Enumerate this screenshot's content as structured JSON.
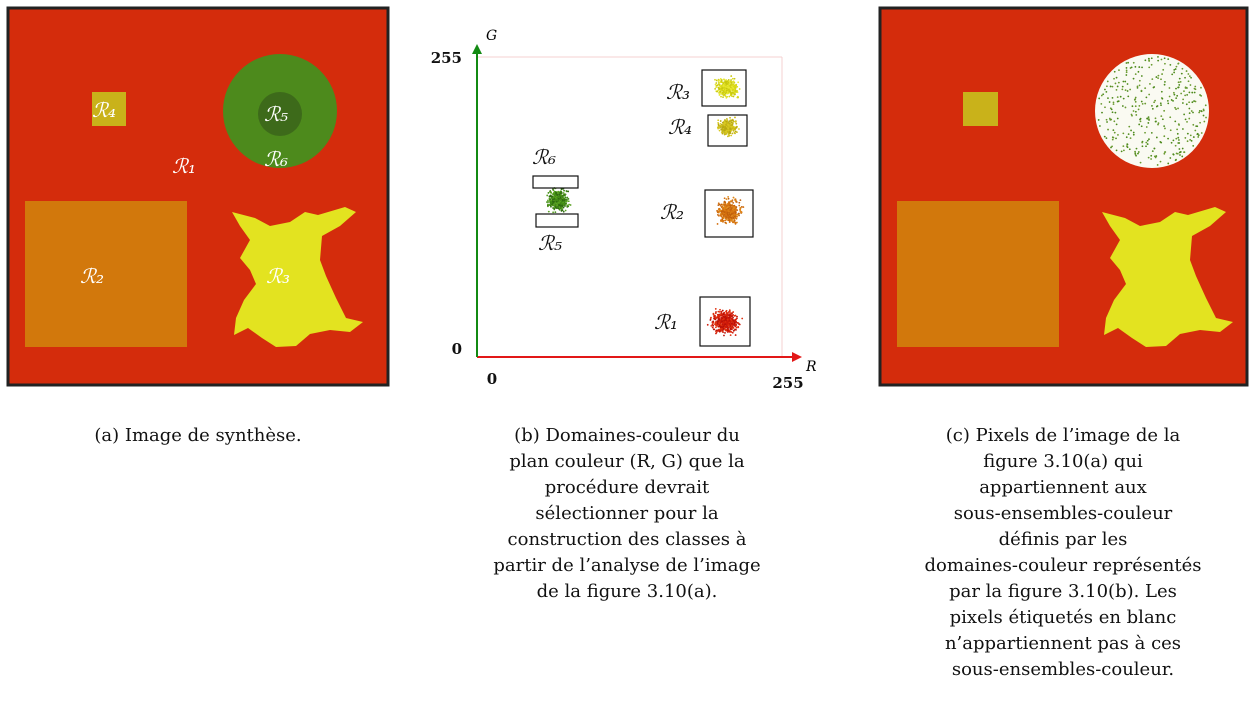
{
  "panel_a": {
    "labels": [
      "ℛ₁",
      "ℛ₂",
      "ℛ₃",
      "ℛ₄",
      "ℛ₅",
      "ℛ₆"
    ],
    "caption_lines": [
      "(a) Image de synthèse."
    ]
  },
  "panel_b": {
    "axis": {
      "x_label": "R",
      "y_label": "G",
      "x_min": "0",
      "x_max": "255",
      "y_min": "0",
      "y_max": "255"
    },
    "labels": [
      "ℛ₁",
      "ℛ₂",
      "ℛ₃",
      "ℛ₄",
      "ℛ₅",
      "ℛ₆"
    ],
    "caption_lines": [
      "(b) Domaines-couleur du",
      "plan couleur (R, G) que la",
      "procédure devrait",
      "sélectionner pour la",
      "construction des classes à",
      "partir de l’analyse de l’image",
      "de la figure 3.10(a)."
    ]
  },
  "panel_c": {
    "caption_lines": [
      "(c) Pixels de l’image de la",
      "figure 3.10(a) qui",
      "appartiennent aux",
      "sous-ensembles-couleur",
      "définis par les",
      "domaines-couleur représentés",
      "par la figure 3.10(b). Les",
      "pixels étiquetés en blanc",
      "n’appartiennent pas à ces",
      "sous-ensembles-couleur."
    ]
  }
}
